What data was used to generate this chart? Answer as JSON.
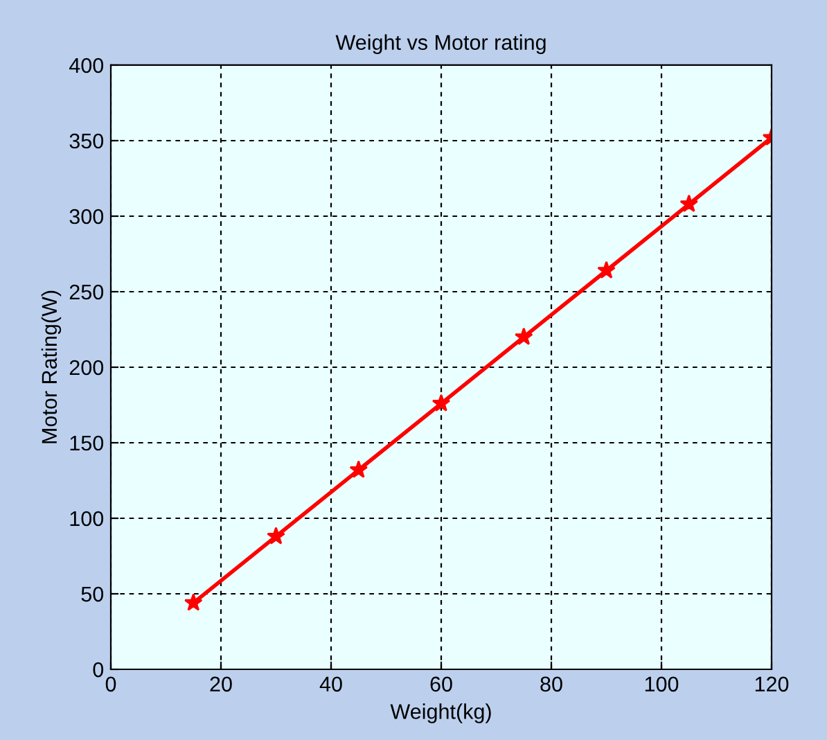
{
  "chart_data": {
    "type": "line",
    "title": "Weight vs Motor rating",
    "xlabel": "Weight(kg)",
    "ylabel": "Motor Rating(W)",
    "x": [
      15,
      30,
      45,
      60,
      75,
      90,
      105,
      120
    ],
    "series": [
      {
        "color": "#ff0000",
        "values": [
          44,
          88,
          132,
          176,
          220,
          264,
          308,
          352
        ]
      }
    ],
    "xlim": [
      0,
      120
    ],
    "xticks": [
      0,
      20,
      40,
      60,
      80,
      100,
      120
    ],
    "ylim": [
      0,
      400
    ],
    "yticks": [
      0,
      50,
      100,
      150,
      200,
      250,
      300,
      350,
      400
    ],
    "grid": true,
    "marker": "star",
    "line_style": "solid"
  }
}
